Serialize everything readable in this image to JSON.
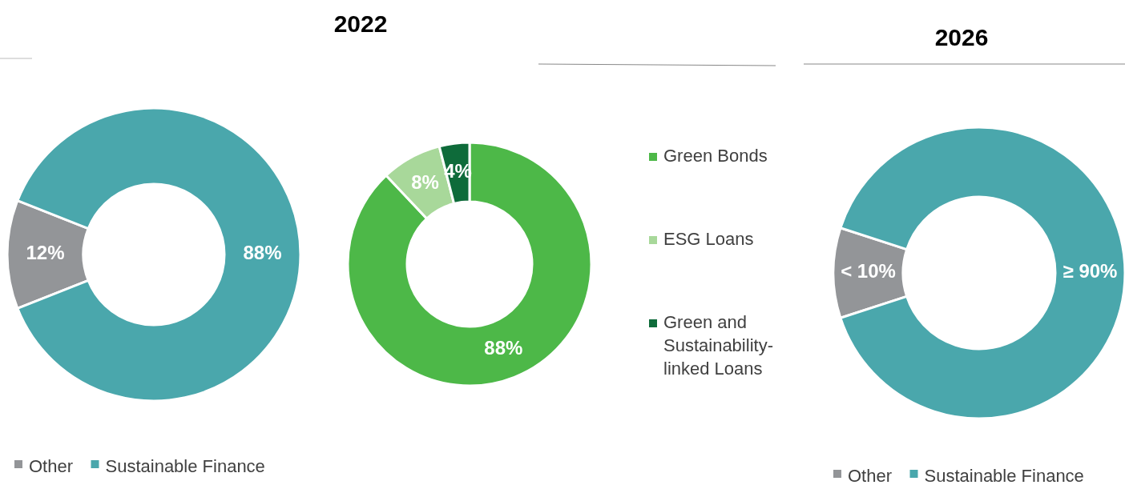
{
  "chart_data": [
    {
      "type": "donut",
      "title": "2022",
      "categories": [
        "Other",
        "Sustainable Finance"
      ],
      "values": [
        12,
        88
      ],
      "colors": [
        "#939598",
        "#4aa7ac"
      ],
      "value_labels": [
        "12%",
        "88%"
      ],
      "legend": "bottom"
    },
    {
      "type": "donut",
      "categories": [
        "Green Bonds",
        "ESG Loans",
        "Green and Sustainability-linked Loans"
      ],
      "values": [
        88,
        8,
        4
      ],
      "colors": [
        "#4db848",
        "#a8d89a",
        "#0e6b3a"
      ],
      "value_labels": [
        "88%",
        "8%",
        "4%"
      ],
      "legend": "right"
    },
    {
      "type": "donut",
      "title": "2026",
      "categories": [
        "Other",
        "Sustainable Finance"
      ],
      "values": [
        10,
        90
      ],
      "colors": [
        "#939598",
        "#4aa7ac"
      ],
      "value_labels": [
        "< 10%",
        "≥ 90%"
      ],
      "legend": "bottom"
    }
  ]
}
